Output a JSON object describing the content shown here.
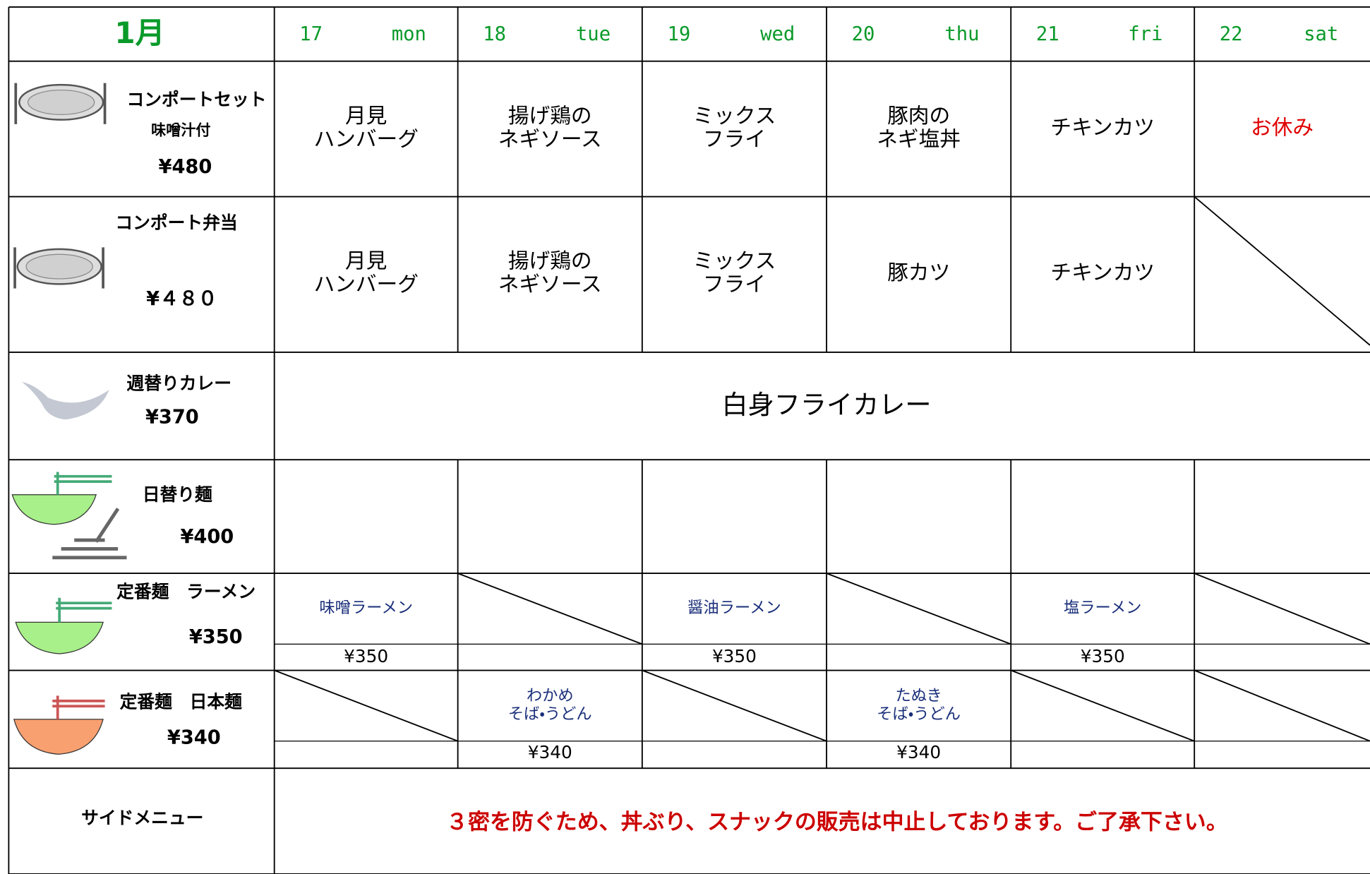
{
  "header": {
    "month": "1月",
    "days": [
      {
        "num": "17",
        "dow": "mon"
      },
      {
        "num": "18",
        "dow": "tue"
      },
      {
        "num": "19",
        "dow": "wed"
      },
      {
        "num": "20",
        "dow": "thu"
      },
      {
        "num": "21",
        "dow": "fri"
      },
      {
        "num": "22",
        "dow": "sat"
      }
    ]
  },
  "set": {
    "name": "コンポートセット",
    "sub": "味噌汁付",
    "price": "¥480",
    "cells": [
      [
        "月見",
        "ハンバーグ"
      ],
      [
        "揚げ鶏の",
        "ネギソース"
      ],
      [
        "ミックス",
        "フライ"
      ],
      [
        "豚肉の",
        "ネギ塩丼"
      ],
      [
        "チキンカツ"
      ],
      [
        "お休み"
      ]
    ]
  },
  "bento": {
    "name": "コンポート弁当",
    "price": "¥４８０",
    "cells": [
      [
        "月見",
        "ハンバーグ"
      ],
      [
        "揚げ鶏の",
        "ネギソース"
      ],
      [
        "ミックス",
        "フライ"
      ],
      [
        "豚カツ"
      ],
      [
        "チキンカツ"
      ],
      null
    ]
  },
  "curry": {
    "name": "週替りカレー",
    "price": "¥370",
    "content": "白身フライカレー"
  },
  "daily": {
    "name": "日替り麺",
    "price": "¥400"
  },
  "ramen": {
    "name": "定番麺　ラーメン",
    "price": "¥350",
    "cells": [
      {
        "name": [
          "味噌ラーメン"
        ],
        "price": "¥350"
      },
      null,
      {
        "name": [
          "醤油ラーメン"
        ],
        "price": "¥350"
      },
      null,
      {
        "name": [
          "塩ラーメン"
        ],
        "price": "¥350"
      },
      null
    ]
  },
  "japanese": {
    "name": "定番麺　日本麺",
    "price": "¥340",
    "cells": [
      null,
      {
        "name": [
          "わかめ",
          "そば・うどん"
        ],
        "price": "¥340"
      },
      null,
      {
        "name": [
          "たぬき",
          "そば・うどん"
        ],
        "price": "¥340"
      },
      null,
      null
    ]
  },
  "side": {
    "name": "サイドメニュー",
    "notice": "３密を防ぐため、丼ぶり、スナックの販売は中止しております。ご了承下さい。"
  }
}
